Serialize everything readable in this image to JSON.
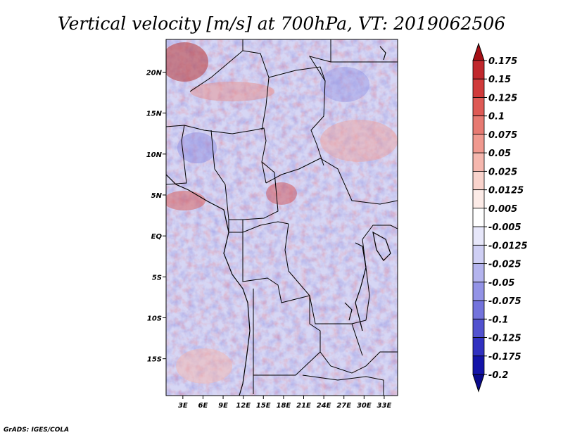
{
  "title": "Vertical velocity [m/s] at 700hPa, VT: 2019062506",
  "credit": "GrADS: IGES/COLA",
  "map": {
    "lat_range": [
      -19.5,
      24
    ],
    "lon_range": [
      0.5,
      35
    ],
    "lat_ticks": [
      {
        "value": 20,
        "label": "20N"
      },
      {
        "value": 15,
        "label": "15N"
      },
      {
        "value": 10,
        "label": "10N"
      },
      {
        "value": 5,
        "label": "5N"
      },
      {
        "value": 0,
        "label": "EQ"
      },
      {
        "value": -5,
        "label": "5S"
      },
      {
        "value": -10,
        "label": "10S"
      },
      {
        "value": -15,
        "label": "15S"
      }
    ],
    "lon_ticks": [
      {
        "value": 3,
        "label": "3E"
      },
      {
        "value": 6,
        "label": "6E"
      },
      {
        "value": 9,
        "label": "9E"
      },
      {
        "value": 12,
        "label": "12E"
      },
      {
        "value": 15,
        "label": "15E"
      },
      {
        "value": 18,
        "label": "18E"
      },
      {
        "value": 21,
        "label": "21E"
      },
      {
        "value": 24,
        "label": "24E"
      },
      {
        "value": 27,
        "label": "27E"
      },
      {
        "value": 30,
        "label": "30E"
      },
      {
        "value": 33,
        "label": "33E"
      }
    ]
  },
  "colorbar": {
    "levels": [
      "0.175",
      "0.15",
      "0.125",
      "0.1",
      "0.075",
      "0.05",
      "0.025",
      "0.0125",
      "0.005",
      "-0.005",
      "-0.0125",
      "-0.025",
      "-0.05",
      "-0.075",
      "-0.1",
      "-0.125",
      "-0.175",
      "-0.2"
    ],
    "colors": [
      "#a50f15",
      "#c0282d",
      "#d03b3b",
      "#de5a55",
      "#e77a72",
      "#f0998f",
      "#f5b7ae",
      "#f9d3cc",
      "#fcebe7",
      "#ffffff",
      "#e7e7fa",
      "#cfcff4",
      "#b4b4ee",
      "#9393e6",
      "#7373dc",
      "#5252cf",
      "#3131c0",
      "#1414a8",
      "#0a0a8c"
    ]
  }
}
